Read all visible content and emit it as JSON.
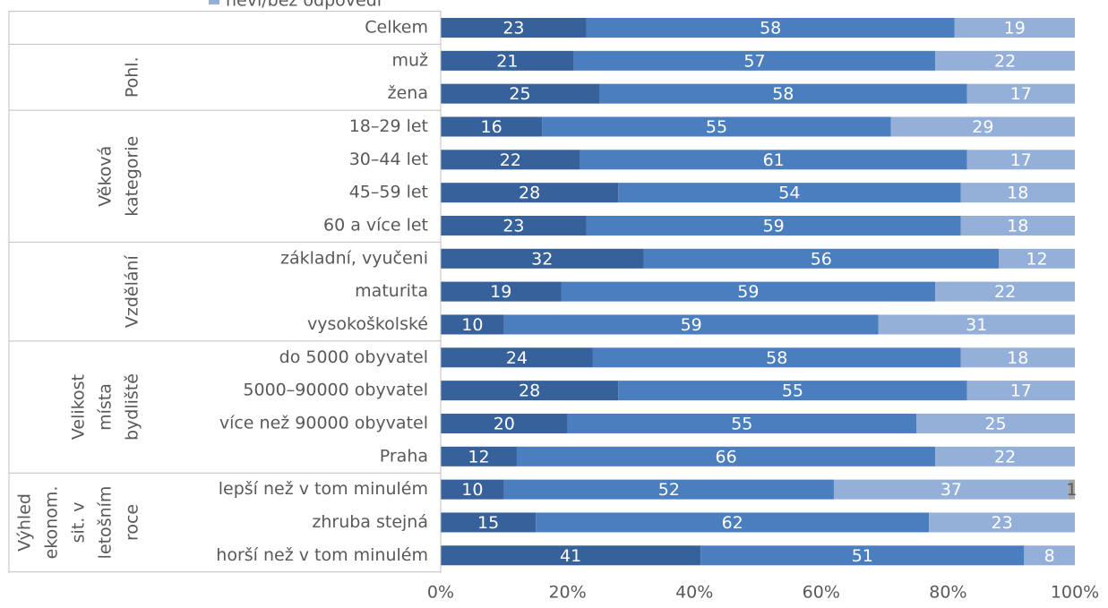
{
  "chart_data": {
    "type": "stacked-bar-horizontal",
    "categories": [
      "Celkem",
      "muž",
      "žena",
      "18–29 let",
      "30–44 let",
      "45–59 let",
      "60 a více let",
      "základní, vyučeni",
      "maturita",
      "vysokoškolské",
      "do 5000 obyvatel",
      "5000–90000 obyvatel",
      "více než 90000 obyvatel",
      "Praha",
      "lepší než v tom minulém",
      "zhruba stejná",
      "horší než v tom minulém"
    ],
    "groups": [
      {
        "label": [],
        "count": 1
      },
      {
        "label": [
          "Pohl."
        ],
        "count": 2
      },
      {
        "label": [
          "Věková",
          "kategorie"
        ],
        "count": 4
      },
      {
        "label": [
          "Vzdělání"
        ],
        "count": 3
      },
      {
        "label": [
          "Velikost",
          "místa",
          "bydliště"
        ],
        "count": 4
      },
      {
        "label": [
          "Výhled",
          "ekonom.",
          "sit. v",
          "letošním",
          "roce"
        ],
        "count": 3
      }
    ],
    "series": [
      {
        "color": "#36619a",
        "label_color": "#ffffff",
        "values": [
          23,
          21,
          25,
          16,
          22,
          28,
          23,
          32,
          19,
          10,
          24,
          28,
          20,
          12,
          10,
          15,
          41
        ]
      },
      {
        "color": "#4a7ebf",
        "label_color": "#ffffff",
        "values": [
          58,
          57,
          58,
          55,
          61,
          54,
          59,
          56,
          59,
          59,
          58,
          55,
          55,
          66,
          52,
          62,
          51
        ]
      },
      {
        "name": "neví/bez odpovědi",
        "color": "#94b0d8",
        "label_color": "#ffffff",
        "values": [
          19,
          22,
          17,
          29,
          17,
          18,
          18,
          12,
          22,
          31,
          18,
          17,
          25,
          22,
          37,
          23,
          8
        ]
      },
      {
        "color": "#a5a5a5",
        "label_color": "#595959",
        "values": [
          null,
          null,
          null,
          null,
          null,
          null,
          null,
          null,
          null,
          null,
          null,
          null,
          null,
          null,
          1,
          null,
          null
        ]
      }
    ],
    "xlim": [
      0,
      100
    ],
    "xticks": [
      {
        "value": 0,
        "label": "0%"
      },
      {
        "value": 20,
        "label": "20%"
      },
      {
        "value": 40,
        "label": "40%"
      },
      {
        "value": 60,
        "label": "60%"
      },
      {
        "value": 80,
        "label": "80%"
      },
      {
        "value": 100,
        "label": "100%"
      }
    ]
  }
}
